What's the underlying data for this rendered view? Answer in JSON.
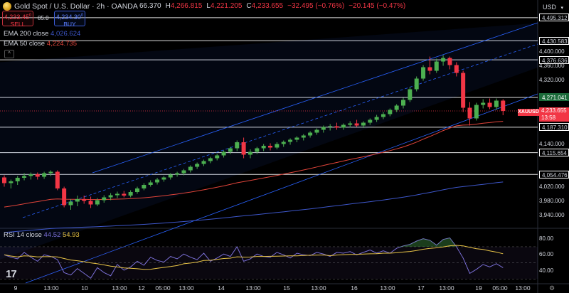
{
  "header": {
    "title": "Gold Spot / U.S. Dollar · 2h · OANDA",
    "ohlc": {
      "open": "66.370",
      "high_label": "H",
      "high": "4,266.815",
      "low_label": "L",
      "low": "4,221.205",
      "close_label": "C",
      "close": "4,233.655",
      "change": "−32.495 (−0.76%)",
      "change2": "−20.145 (−0.47%)"
    }
  },
  "trade": {
    "sell_price": "4,233.45",
    "sell_sup": "0",
    "sell_label": "SELL",
    "spread": "85.0",
    "buy_price": "4,234.30",
    "buy_sup": "0",
    "buy_label": "BUY"
  },
  "indicators": {
    "ema200": {
      "name": "EMA 200 close",
      "value": "4,026.624",
      "color": "#3d56c9"
    },
    "ema50": {
      "name": "EMA 50 close",
      "value": "4,224.735",
      "color": "#e0443a"
    },
    "rsi": {
      "name": "RSI 14 close",
      "value1": "44.52",
      "value2": "54.93"
    }
  },
  "axis": {
    "currency": "USD",
    "price_ticks": [
      "4,400.000",
      "4,360.000",
      "4,320.000",
      "4,140.000",
      "4,020.000",
      "3,980.000",
      "3,940.000"
    ],
    "level_tags": [
      "4,495.312",
      "4,430.583",
      "4,376.636",
      "4,271.041",
      "4,187.310",
      "4,115.654",
      "4,054.476"
    ],
    "rsi_ticks": [
      "80.00",
      "60.00",
      "40.00"
    ],
    "time_ticks": [
      "9",
      "13:00",
      "10",
      "13:00",
      "12",
      "05:00",
      "13:00",
      "14",
      "13:00",
      "15",
      "13:00",
      "16",
      "13:00",
      "17",
      "13:00",
      "19",
      "05:00",
      "13:00"
    ]
  },
  "last_price": {
    "symbol": "XAUUSD",
    "price": "4,233.655",
    "countdown": "13:58"
  },
  "colors": {
    "up": "#4caf50",
    "down": "#f23645",
    "channel": "#2962ff",
    "ema200": "#3d56c9",
    "ema50": "#e0443a",
    "rsi": "#7a6fd6",
    "rsi_ma": "#e8c447"
  },
  "chart_data": {
    "type": "candlestick",
    "ohlc": [
      [
        4046,
        4052,
        4020,
        4030
      ],
      [
        4030,
        4040,
        4015,
        4035
      ],
      [
        4035,
        4050,
        4025,
        4045
      ],
      [
        4045,
        4058,
        4038,
        4050
      ],
      [
        4050,
        4060,
        4040,
        4055
      ],
      [
        4055,
        4060,
        4040,
        4048
      ],
      [
        4048,
        4062,
        4042,
        4058
      ],
      [
        4058,
        4066,
        4050,
        4062
      ],
      [
        4062,
        4066,
        4010,
        4015
      ],
      [
        4015,
        4020,
        3962,
        3968
      ],
      [
        3968,
        3985,
        3955,
        3978
      ],
      [
        3978,
        3995,
        3965,
        3985
      ],
      [
        3985,
        3995,
        3972,
        3980
      ],
      [
        3980,
        3992,
        3960,
        3970
      ],
      [
        3970,
        3988,
        3965,
        3982
      ],
      [
        3982,
        3996,
        3975,
        3990
      ],
      [
        3990,
        4002,
        3982,
        3996
      ],
      [
        3996,
        4006,
        3988,
        4000
      ],
      [
        4000,
        4008,
        3990,
        3995
      ],
      [
        3995,
        4010,
        3990,
        4005
      ],
      [
        4005,
        4020,
        4000,
        4015
      ],
      [
        4015,
        4030,
        4010,
        4025
      ],
      [
        4025,
        4038,
        4020,
        4032
      ],
      [
        4032,
        4045,
        4026,
        4040
      ],
      [
        4040,
        4050,
        4034,
        4046
      ],
      [
        4046,
        4058,
        4040,
        4054
      ],
      [
        4054,
        4062,
        4048,
        4058
      ],
      [
        4058,
        4070,
        4052,
        4066
      ],
      [
        4066,
        4080,
        4060,
        4076
      ],
      [
        4076,
        4088,
        4070,
        4084
      ],
      [
        4084,
        4096,
        4078,
        4092
      ],
      [
        4092,
        4104,
        4086,
        4100
      ],
      [
        4100,
        4112,
        4094,
        4108
      ],
      [
        4108,
        4122,
        4102,
        4118
      ],
      [
        4118,
        4132,
        4112,
        4128
      ],
      [
        4128,
        4150,
        4120,
        4145
      ],
      [
        4145,
        4158,
        4100,
        4110
      ],
      [
        4110,
        4125,
        4100,
        4118
      ],
      [
        4118,
        4132,
        4112,
        4128
      ],
      [
        4128,
        4140,
        4120,
        4135
      ],
      [
        4135,
        4142,
        4122,
        4130
      ],
      [
        4130,
        4145,
        4125,
        4140
      ],
      [
        4140,
        4150,
        4132,
        4146
      ],
      [
        4146,
        4156,
        4138,
        4152
      ],
      [
        4152,
        4162,
        4145,
        4158
      ],
      [
        4158,
        4168,
        4150,
        4164
      ],
      [
        4164,
        4176,
        4158,
        4172
      ],
      [
        4172,
        4184,
        4166,
        4180
      ],
      [
        4180,
        4192,
        4172,
        4188
      ],
      [
        4188,
        4196,
        4178,
        4190
      ],
      [
        4190,
        4200,
        4180,
        4186
      ],
      [
        4186,
        4198,
        4180,
        4194
      ],
      [
        4194,
        4204,
        4186,
        4198
      ],
      [
        4198,
        4208,
        4188,
        4192
      ],
      [
        4192,
        4204,
        4185,
        4200
      ],
      [
        4200,
        4212,
        4194,
        4208
      ],
      [
        4208,
        4222,
        4202,
        4216
      ],
      [
        4216,
        4230,
        4210,
        4224
      ],
      [
        4224,
        4240,
        4218,
        4236
      ],
      [
        4236,
        4252,
        4230,
        4248
      ],
      [
        4248,
        4270,
        4240,
        4264
      ],
      [
        4264,
        4300,
        4258,
        4294
      ],
      [
        4294,
        4330,
        4288,
        4324
      ],
      [
        4324,
        4362,
        4318,
        4356
      ],
      [
        4356,
        4386,
        4336,
        4346
      ],
      [
        4346,
        4380,
        4340,
        4372
      ],
      [
        4372,
        4390,
        4360,
        4382
      ],
      [
        4382,
        4386,
        4350,
        4362
      ],
      [
        4362,
        4370,
        4330,
        4340
      ],
      [
        4340,
        4346,
        4230,
        4242
      ],
      [
        4242,
        4258,
        4192,
        4212
      ],
      [
        4212,
        4256,
        4206,
        4250
      ],
      [
        4250,
        4266,
        4240,
        4256
      ],
      [
        4256,
        4268,
        4238,
        4244
      ],
      [
        4244,
        4268,
        4236,
        4262
      ],
      [
        4262,
        4266,
        4221,
        4233
      ]
    ],
    "price_range": [
      3905,
      4505
    ],
    "rsi": [
      60,
      57,
      55,
      63,
      57,
      52,
      60,
      58,
      54,
      38,
      35,
      43,
      37,
      31,
      44,
      38,
      34,
      48,
      41,
      45,
      52,
      47,
      57,
      53,
      51,
      58,
      55,
      61,
      57,
      54,
      62,
      52,
      56,
      61,
      58,
      70,
      52,
      55,
      61,
      58,
      57,
      63,
      60,
      56,
      62,
      60,
      59,
      63,
      61,
      58,
      63,
      62,
      64,
      60,
      63,
      66,
      62,
      65,
      62,
      68,
      71,
      73,
      77,
      80,
      78,
      72,
      79,
      81,
      70,
      56,
      37,
      42,
      48,
      45,
      49,
      44
    ],
    "rsi_range": [
      25,
      92
    ],
    "rsi_levels": [
      70,
      50,
      30
    ]
  }
}
